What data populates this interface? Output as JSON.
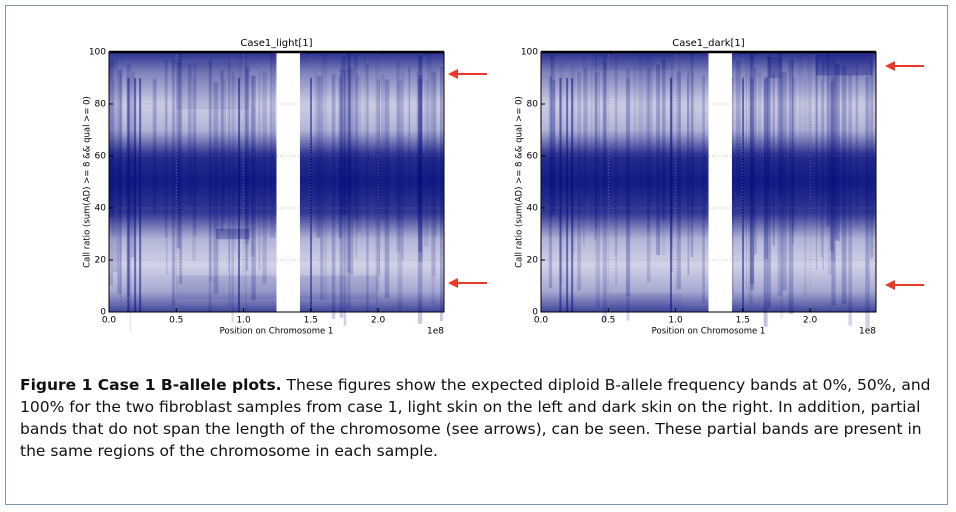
{
  "chart_data": [
    {
      "type": "scatter",
      "title": "Case1_light[1]",
      "x_label": "Position on Chromosome 1",
      "y_label": "Call ratio (sum(AD) >= 8 && qual >= 0)",
      "x_offset_label": "1e8",
      "xlim": [
        0,
        2.49
      ],
      "ylim": [
        0,
        100
      ],
      "xticks": [
        {
          "value": 0,
          "label": "0.0"
        },
        {
          "value": 0.5,
          "label": "0.5"
        },
        {
          "value": 1,
          "label": "1.0"
        },
        {
          "value": 1.5,
          "label": "1.5"
        },
        {
          "value": 2,
          "label": "2.0"
        }
      ],
      "yticks": [
        0,
        20,
        40,
        60,
        80,
        100
      ],
      "grid": true,
      "color": "#00087a"
    },
    {
      "type": "scatter",
      "title": "Case1_dark[1]",
      "x_label": "Position on Chromosome 1",
      "y_label": "Call ratio (sum(AD) >= 8 && qual >= 0)",
      "x_offset_label": "1e8",
      "xlim": [
        0,
        2.49
      ],
      "ylim": [
        0,
        100
      ],
      "xticks": [
        {
          "value": 0,
          "label": "0.0"
        },
        {
          "value": 0.5,
          "label": "0.5"
        },
        {
          "value": 1,
          "label": "1.0"
        },
        {
          "value": 1.5,
          "label": "1.5"
        },
        {
          "value": 2,
          "label": "2.0"
        }
      ],
      "yticks": [
        0,
        20,
        40,
        60,
        80,
        100
      ],
      "grid": true,
      "color": "#00087a"
    }
  ],
  "caption": {
    "title": "Figure 1 Case 1 B-allele plots.",
    "text": "These figures show the expected diploid B-allele frequency bands at 0%, 50%, and 100% for the two fibroblast samples from case 1, light skin on the left and dark skin on the right. In addition, partial bands that do not span the length of the chromosome (see arrows), can be seen. These partial bands are present in the same regions of the chromosome in each sample."
  }
}
